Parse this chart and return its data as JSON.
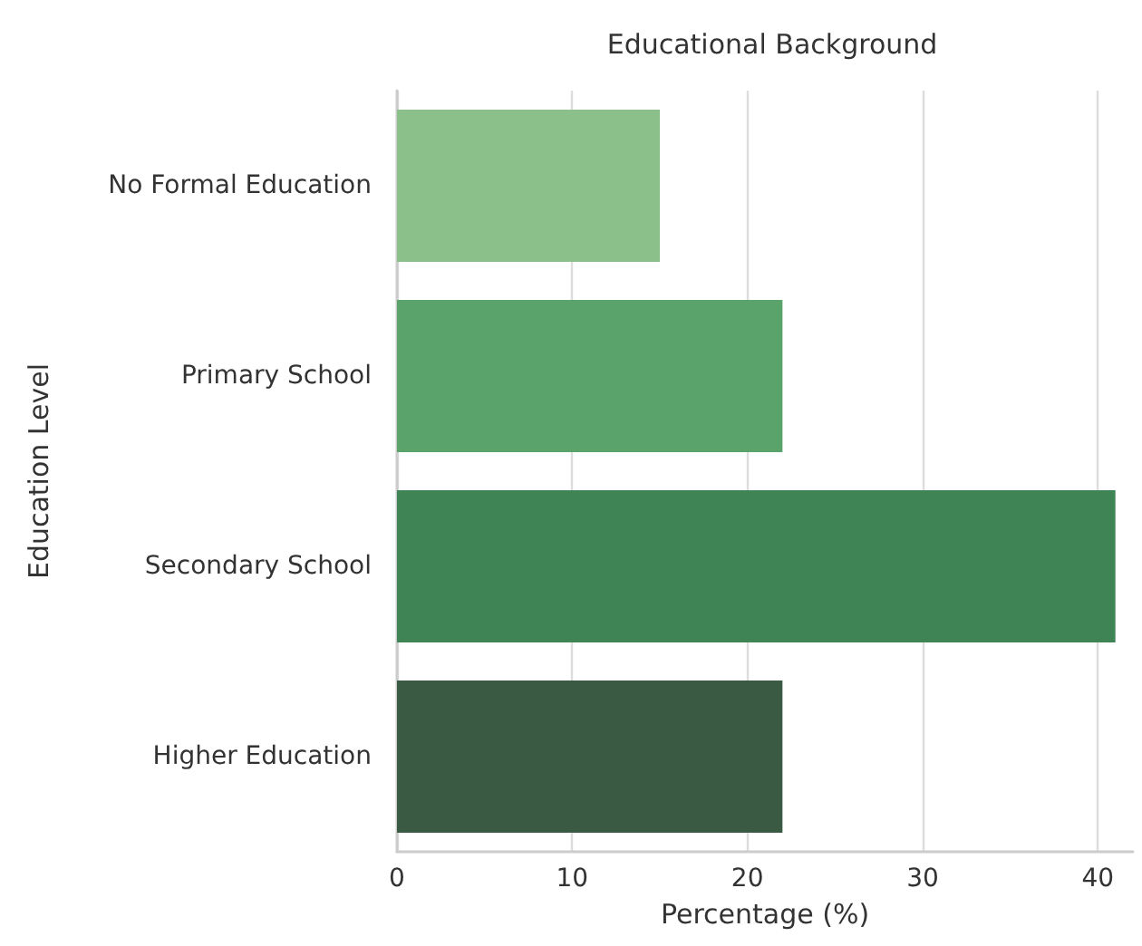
{
  "chart_data": {
    "type": "bar",
    "orientation": "horizontal",
    "title": "Educational Background",
    "xlabel": "Percentage (%)",
    "ylabel": "Education Level",
    "categories": [
      "No Formal Education",
      "Primary School",
      "Secondary School",
      "Higher Education"
    ],
    "values": [
      15,
      22,
      41,
      22
    ],
    "colors": [
      "#8bc08b",
      "#5aa46b",
      "#3f8454",
      "#3a5a43"
    ],
    "xlim": [
      0,
      42
    ],
    "xticks": [
      0,
      10,
      20,
      30,
      40
    ],
    "grid": "x"
  }
}
